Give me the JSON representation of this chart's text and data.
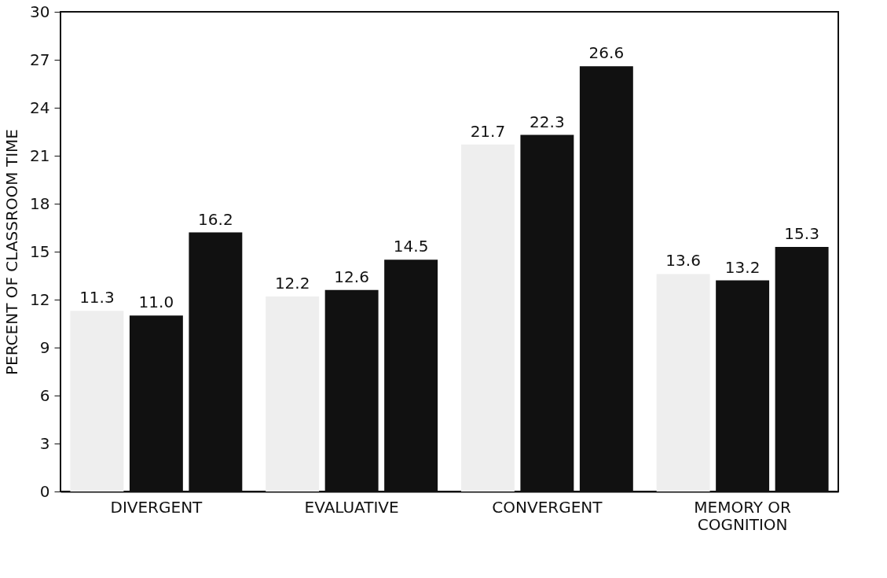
{
  "chart_data": {
    "type": "bar",
    "ylabel": "PERCENT OF CLASSROOM TIME",
    "categories": [
      "DIVERGENT",
      "EVALUATIVE",
      "CONVERGENT",
      "MEMORY OR\nCOGNITION"
    ],
    "series": [
      {
        "color": "#eeeeee",
        "values": [
          11.3,
          12.2,
          21.7,
          13.6
        ],
        "value_labels": [
          "11.3",
          "12.2",
          "21.7",
          "13.6"
        ]
      },
      {
        "color": "#111111",
        "values": [
          11.0,
          12.6,
          22.3,
          13.2
        ],
        "value_labels": [
          "11.0",
          "12.6",
          "22.3",
          "13.2"
        ]
      },
      {
        "color": "#111111",
        "values": [
          16.2,
          14.5,
          26.6,
          15.3
        ],
        "value_labels": [
          "16.2",
          "14.5",
          "26.6",
          "15.3"
        ]
      }
    ],
    "ylim": [
      0,
      30
    ],
    "yticks": [
      0,
      3,
      6,
      9,
      12,
      15,
      18,
      21,
      24,
      27,
      30
    ],
    "grid": false,
    "legend": false
  }
}
